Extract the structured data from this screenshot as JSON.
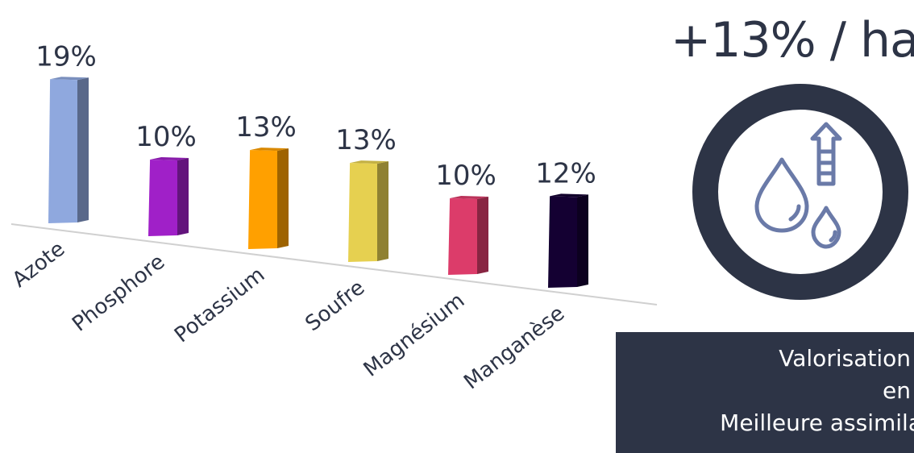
{
  "chart_data": {
    "type": "bar",
    "categories": [
      "Azote",
      "Phosphore",
      "Potassium",
      "Soufre",
      "Magnésium",
      "Manganèse"
    ],
    "values": [
      19,
      10,
      13,
      13,
      10,
      12
    ],
    "value_labels": [
      "19%",
      "10%",
      "13%",
      "13%",
      "10%",
      "12%"
    ],
    "unit": "%",
    "colors": [
      "#8fa8de",
      "#a020c8",
      "#ffa000",
      "#e6d050",
      "#dc3c6a",
      "#140032"
    ],
    "ylim": [
      0,
      20
    ]
  },
  "headline": {
    "text": "+13% / ha"
  },
  "icon": {
    "name": "water-drops-arrow-up-icon",
    "ring_color": "#2d3446",
    "stroke_color": "#6a7aa8"
  },
  "banner": {
    "background": "#2d3446",
    "line1": "Valorisation",
    "line2": "en",
    "line3": "Meilleure assimila"
  }
}
